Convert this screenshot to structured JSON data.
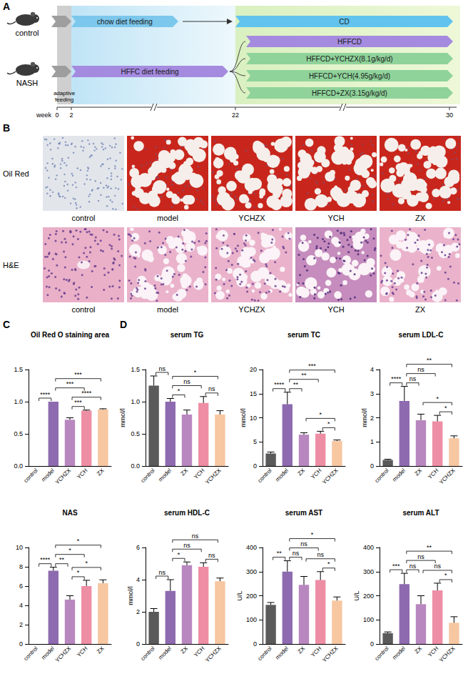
{
  "panel_a": {
    "letter": "A",
    "groups": [
      "control",
      "NASH"
    ],
    "adaptive": "adaptive feeding",
    "control_phase": "chow diet feeding",
    "control_treatment": "CD",
    "model_phase": "HFFC diet feeding",
    "treatments": [
      "HFFCD",
      "HFFCD+YCHZX(8.1g/kg/d)",
      "HFFCD+YCH(4.95g/kg/d)",
      "HFFCD+ZX(3.15g/kg/d)"
    ],
    "axis_label": "week",
    "weeks": [
      0,
      2,
      22,
      30
    ]
  },
  "panel_b": {
    "letter": "B",
    "rows": [
      "Oil Red",
      "H&E"
    ],
    "columns": [
      "control",
      "model",
      "YCHZX",
      "YCH",
      "ZX"
    ]
  },
  "chart_data": [
    {
      "type": "bar",
      "letter": "C",
      "title": "Oil Red O staining area",
      "categories": [
        "control",
        "model",
        "YCHZX",
        "YCH",
        "ZX"
      ],
      "values": [
        0,
        1.0,
        0.72,
        0.86,
        0.88
      ],
      "errors": [
        0,
        0,
        0.03,
        0.01,
        0.01
      ],
      "colors": [
        "#5a5a5a",
        "#8e6bb0",
        "#b987bf",
        "#ee8ea4",
        "#f7c7a1"
      ],
      "ylim": [
        0,
        1.5
      ],
      "yticks": [
        {
          "value": 0,
          "label": "0.0"
        },
        0.5,
        {
          "value": 1,
          "label": "1.0"
        },
        1.5
      ],
      "annotations": [
        {
          "from": "control",
          "to": "model",
          "label": "****"
        },
        {
          "from": "YCHZX",
          "to": "YCH",
          "label": "***"
        },
        {
          "from": "YCHZX",
          "to": "ZX",
          "label": "****"
        },
        {
          "from": "model",
          "to": "YCH",
          "label": "***"
        },
        {
          "from": "model",
          "to": "ZX",
          "label": "***"
        }
      ]
    },
    {
      "type": "bar",
      "letter": "D",
      "title": "serum TG",
      "ylabel": "mmol/l",
      "categories": [
        "control",
        "model",
        "ZX",
        "YCH",
        "YCHZX"
      ],
      "values": [
        1.25,
        1.0,
        0.8,
        0.98,
        0.8
      ],
      "errors": [
        0.15,
        0.05,
        0.07,
        0.1,
        0.06
      ],
      "colors": [
        "#5a5a5a",
        "#8e6bb0",
        "#b987bf",
        "#ee8ea4",
        "#f7c7a1"
      ],
      "ylim": [
        0,
        1.5
      ],
      "yticks": [
        {
          "value": 0,
          "label": "0.0"
        },
        0.5,
        {
          "value": 1,
          "label": "1.0"
        },
        1.5
      ],
      "annotations": [
        {
          "from": "control",
          "to": "model",
          "label": "ns"
        },
        {
          "from": "model",
          "to": "ZX",
          "label": "*"
        },
        {
          "from": "YCH",
          "to": "YCHZX",
          "label": "ns"
        },
        {
          "from": "model",
          "to": "YCH",
          "label": "ns"
        },
        {
          "from": "model",
          "to": "YCHZX",
          "label": "*"
        }
      ]
    },
    {
      "type": "bar",
      "title": "serum TC",
      "ylabel": "mmol/l",
      "categories": [
        "control",
        "model",
        "ZX",
        "YCH",
        "YCHZX"
      ],
      "values": [
        2.6,
        12.8,
        6.5,
        6.7,
        5.2
      ],
      "errors": [
        0.3,
        2.5,
        0.4,
        0.5,
        0.2
      ],
      "colors": [
        "#5a5a5a",
        "#8e6bb0",
        "#b987bf",
        "#ee8ea4",
        "#f7c7a1"
      ],
      "ylim": [
        0,
        20
      ],
      "yticks": [
        0,
        5,
        10,
        15,
        20
      ],
      "annotations": [
        {
          "from": "control",
          "to": "model",
          "label": "****"
        },
        {
          "from": "model",
          "to": "ZX",
          "label": "**"
        },
        {
          "from": "YCH",
          "to": "YCHZX",
          "label": "*"
        },
        {
          "from": "ZX",
          "to": "YCHZX",
          "label": "*"
        },
        {
          "from": "model",
          "to": "YCH",
          "label": "**"
        },
        {
          "from": "model",
          "to": "YCHZX",
          "label": "***"
        }
      ]
    },
    {
      "type": "bar",
      "title": "serum LDL-C",
      "ylabel": "mmol/l",
      "categories": [
        "control",
        "model",
        "ZX",
        "YCH",
        "YCHZX"
      ],
      "values": [
        0.25,
        2.7,
        1.9,
        1.85,
        1.15
      ],
      "errors": [
        0.03,
        0.6,
        0.25,
        0.25,
        0.1
      ],
      "colors": [
        "#5a5a5a",
        "#8e6bb0",
        "#b987bf",
        "#ee8ea4",
        "#f7c7a1"
      ],
      "ylim": [
        0,
        4
      ],
      "yticks": [
        0,
        1,
        2,
        3,
        4
      ],
      "annotations": [
        {
          "from": "control",
          "to": "model",
          "label": "****"
        },
        {
          "from": "model",
          "to": "ZX",
          "label": "ns"
        },
        {
          "from": "YCH",
          "to": "YCHZX",
          "label": "*"
        },
        {
          "from": "ZX",
          "to": "YCHZX",
          "label": "*"
        },
        {
          "from": "model",
          "to": "YCH",
          "label": "ns"
        },
        {
          "from": "model",
          "to": "YCHZX",
          "label": "**"
        }
      ]
    },
    {
      "type": "bar",
      "title": "NAS",
      "categories": [
        "control",
        "model",
        "YCHZX",
        "YCH",
        "ZX"
      ],
      "values": [
        0,
        7.6,
        4.6,
        6.0,
        6.3
      ],
      "errors": [
        0,
        0.35,
        0.4,
        0.6,
        0.35
      ],
      "colors": [
        "#5a5a5a",
        "#8e6bb0",
        "#b987bf",
        "#ee8ea4",
        "#f7c7a1"
      ],
      "ylim": [
        0,
        10
      ],
      "yticks": [
        0,
        2,
        4,
        6,
        8,
        10
      ],
      "annotations": [
        {
          "from": "control",
          "to": "model",
          "label": "****"
        },
        {
          "from": "YCHZX",
          "to": "YCH",
          "label": "*"
        },
        {
          "from": "model",
          "to": "YCHZX",
          "label": "**"
        },
        {
          "from": "YCHZX",
          "to": "ZX",
          "label": "*"
        },
        {
          "from": "model",
          "to": "YCH",
          "label": "*"
        },
        {
          "from": "model",
          "to": "ZX",
          "label": "*"
        }
      ]
    },
    {
      "type": "bar",
      "title": "serum HDL-C",
      "ylabel": "mmol/l",
      "categories": [
        "control",
        "model",
        "ZX",
        "YCH",
        "YCHZX"
      ],
      "values": [
        2.0,
        3.3,
        4.9,
        4.8,
        3.9
      ],
      "errors": [
        0.2,
        0.7,
        0.2,
        0.25,
        0.2
      ],
      "colors": [
        "#5a5a5a",
        "#8e6bb0",
        "#b987bf",
        "#ee8ea4",
        "#f7c7a1"
      ],
      "ylim": [
        0,
        6
      ],
      "yticks": [
        0,
        2,
        4,
        6
      ],
      "annotations": [
        {
          "from": "control",
          "to": "model",
          "label": "ns"
        },
        {
          "from": "model",
          "to": "ZX",
          "label": "*"
        },
        {
          "from": "YCH",
          "to": "YCHZX",
          "label": "ns"
        },
        {
          "from": "model",
          "to": "YCH",
          "label": "ns"
        },
        {
          "from": "model",
          "to": "YCHZX",
          "label": "ns"
        }
      ]
    },
    {
      "type": "bar",
      "title": "serum AST",
      "ylabel": "U/L",
      "categories": [
        "control",
        "model",
        "ZX",
        "YCH",
        "YCHZX"
      ],
      "values": [
        162,
        300,
        245,
        265,
        180
      ],
      "errors": [
        10,
        45,
        35,
        35,
        15
      ],
      "colors": [
        "#5a5a5a",
        "#8e6bb0",
        "#b987bf",
        "#ee8ea4",
        "#f7c7a1"
      ],
      "ylim": [
        0,
        400
      ],
      "yticks": [
        0,
        100,
        200,
        300,
        400
      ],
      "annotations": [
        {
          "from": "control",
          "to": "model",
          "label": "**"
        },
        {
          "from": "model",
          "to": "ZX",
          "label": "ns"
        },
        {
          "from": "YCH",
          "to": "YCHZX",
          "label": "*"
        },
        {
          "from": "ZX",
          "to": "YCHZX",
          "label": "ns"
        },
        {
          "from": "model",
          "to": "YCH",
          "label": "ns"
        },
        {
          "from": "model",
          "to": "YCHZX",
          "label": "*"
        }
      ]
    },
    {
      "type": "bar",
      "title": "serum ALT",
      "ylabel": "U/L",
      "categories": [
        "control",
        "model",
        "ZX",
        "YCH",
        "YCHZX"
      ],
      "values": [
        45,
        248,
        165,
        222,
        88
      ],
      "errors": [
        5,
        45,
        35,
        30,
        25
      ],
      "colors": [
        "#5a5a5a",
        "#8e6bb0",
        "#b987bf",
        "#ee8ea4",
        "#f7c7a1"
      ],
      "ylim": [
        0,
        400
      ],
      "yticks": [
        0,
        100,
        200,
        300,
        400
      ],
      "annotations": [
        {
          "from": "control",
          "to": "model",
          "label": "***"
        },
        {
          "from": "model",
          "to": "ZX",
          "label": "ns"
        },
        {
          "from": "YCH",
          "to": "YCHZX",
          "label": "*"
        },
        {
          "from": "ZX",
          "to": "YCHZX",
          "label": "ns"
        },
        {
          "from": "model",
          "to": "YCH",
          "label": "ns"
        },
        {
          "from": "model",
          "to": "YCHZX",
          "label": "**"
        }
      ]
    }
  ]
}
